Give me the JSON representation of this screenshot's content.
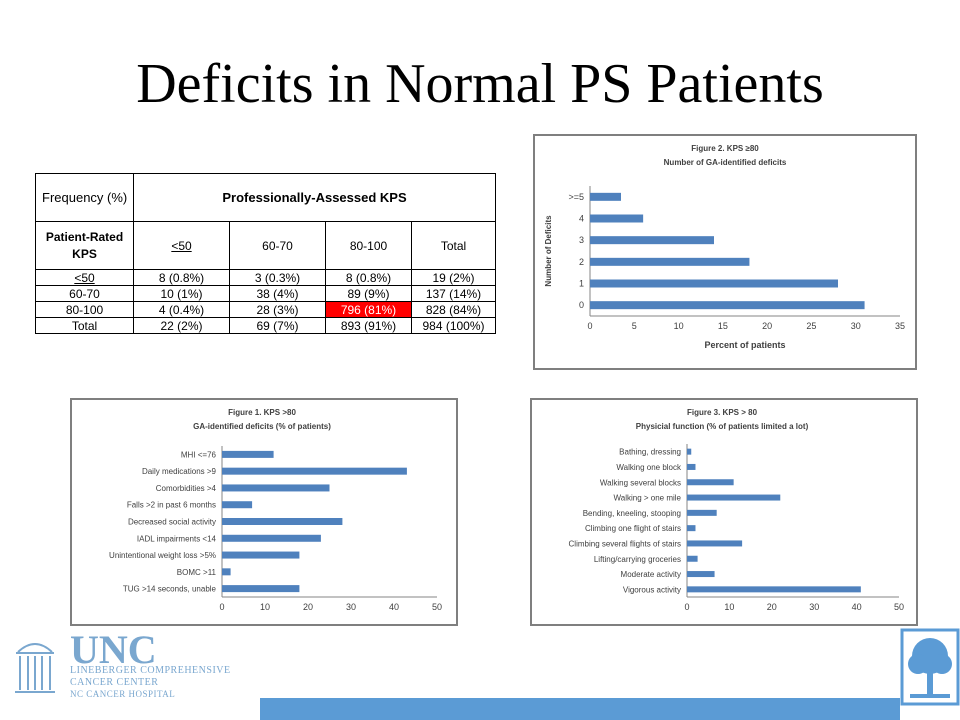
{
  "slide": {
    "title": "Deficits in Normal PS Patients"
  },
  "table": {
    "corner_label": "Frequency (%)",
    "group_header": "Professionally-Assessed KPS",
    "row_header_label": "Patient-Rated KPS",
    "columns": [
      "<50",
      "60-70",
      "80-100",
      "Total"
    ],
    "rows": [
      {
        "label": "<50",
        "cells": [
          "8 (0.8%)",
          "3 (0.3%)",
          "8 (0.8%)",
          "19 (2%)"
        ]
      },
      {
        "label": "60-70",
        "cells": [
          "10 (1%)",
          "38 (4%)",
          "89 (9%)",
          "137 (14%)"
        ]
      },
      {
        "label": "80-100",
        "cells": [
          "4 (0.4%)",
          "28 (3%)",
          "796 (81%)",
          "828 (84%)"
        ]
      },
      {
        "label": "Total",
        "cells": [
          "22 (2%)",
          "69 (7%)",
          "893 (91%)",
          "984 (100%)"
        ]
      }
    ],
    "highlight_color": "#ff0000"
  },
  "chart_data": [
    {
      "id": "fig2",
      "type": "bar",
      "orientation": "horizontal",
      "title": "Figure 2. KPS ≥80",
      "subtitle": "Number of GA-identified deficits",
      "xlabel": "Percent of patients",
      "ylabel": "Number of Deficits",
      "categories": [
        ">=5",
        "4",
        "3",
        "2",
        "1",
        "0"
      ],
      "values": [
        3.5,
        6,
        14,
        18,
        28,
        31
      ],
      "xlim": [
        0,
        35
      ],
      "xticks": [
        "0",
        "5",
        "10",
        "15",
        "20",
        "25",
        "30",
        "35"
      ],
      "grid": false,
      "bar_color": "#4f81bd"
    },
    {
      "id": "fig1",
      "type": "bar",
      "orientation": "horizontal",
      "title": "Figure 1. KPS >80",
      "subtitle": "GA-identified deficits (% of patients)",
      "xlabel": "",
      "ylabel": "",
      "categories": [
        "MHI <=76",
        "Daily medications >9",
        "Comorbidities >4",
        "Falls >2 in past 6 months",
        "Decreased social activity",
        "IADL impairments <14",
        "Unintentional weight loss >5%",
        "BOMC >11",
        "TUG >14 seconds, unable"
      ],
      "values": [
        12,
        43,
        25,
        7,
        28,
        23,
        18,
        2,
        18
      ],
      "xlim": [
        0,
        50
      ],
      "xticks": [
        "0",
        "10",
        "20",
        "30",
        "40",
        "50"
      ],
      "grid": false,
      "bar_color": "#4f81bd"
    },
    {
      "id": "fig3",
      "type": "bar",
      "orientation": "horizontal",
      "title": "Figure 3. KPS > 80",
      "subtitle": "Physicial  function (% of patients limited a lot)",
      "xlabel": "",
      "ylabel": "",
      "categories": [
        "Bathing, dressing",
        "Walking one block",
        "Walking several blocks",
        "Walking > one mile",
        "Bending, kneeling, stooping",
        "Climbing one flight of stairs",
        "Climbing several flights of stairs",
        "Lifting/carrying groceries",
        "Moderate activity",
        "Vigorous activity"
      ],
      "values": [
        1,
        2,
        11,
        22,
        7,
        2,
        13,
        2.5,
        6.5,
        41
      ],
      "xlim": [
        0,
        50
      ],
      "xticks": [
        "0",
        "10",
        "20",
        "30",
        "40",
        "50"
      ],
      "grid": false,
      "bar_color": "#4f81bd"
    }
  ],
  "logo": {
    "name": "UNC",
    "line1": "LINEBERGER COMPREHENSIVE",
    "line2": "CANCER CENTER",
    "line3": "NC CANCER HOSPITAL",
    "color": "#7aa7cf"
  },
  "footer": {
    "bar_color": "#5b9bd5"
  }
}
